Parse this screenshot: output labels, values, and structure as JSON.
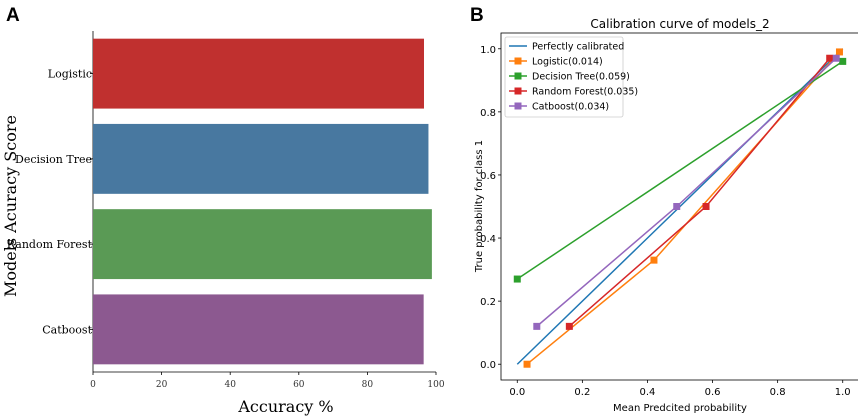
{
  "chart_data": [
    {
      "panel_label": "A",
      "type": "bar",
      "orientation": "horizontal",
      "title": "",
      "xlabel": "Accuracy %",
      "ylabel": "Models Acuracy Score",
      "xlim": [
        0,
        100
      ],
      "xticks": [
        0,
        20,
        40,
        60,
        80,
        100
      ],
      "categories": [
        "Logistic",
        "Decision Tree",
        "Random Forest",
        "Catboost"
      ],
      "values": [
        96.5,
        97.8,
        98.8,
        96.4
      ],
      "colors": [
        "#c0302f",
        "#4878a0",
        "#5a9a55",
        "#8c5990"
      ]
    },
    {
      "panel_label": "B",
      "type": "line",
      "title": "Calibration curve of models_2",
      "xlabel": "Mean Predcited probability",
      "ylabel": "True probability for class 1",
      "xlim": [
        -0.05,
        1.05
      ],
      "ylim": [
        -0.05,
        1.05
      ],
      "xticks": [
        0.0,
        0.2,
        0.4,
        0.6,
        0.8,
        1.0
      ],
      "yticks": [
        0.0,
        0.2,
        0.4,
        0.6,
        0.8,
        1.0
      ],
      "legend_position": "top-left",
      "series": [
        {
          "name": "Perfectly calibrated",
          "color": "#1f77b4",
          "marker": "none",
          "x": [
            0,
            1
          ],
          "y": [
            0,
            1
          ]
        },
        {
          "name": "Logistic(0.014)",
          "color": "#ff7f0e",
          "marker": "square",
          "x": [
            0.03,
            0.42,
            0.99
          ],
          "y": [
            0.0,
            0.33,
            0.99
          ]
        },
        {
          "name": "Decision Tree(0.059)",
          "color": "#2ca02c",
          "marker": "square",
          "x": [
            0.0,
            1.0
          ],
          "y": [
            0.27,
            0.96
          ]
        },
        {
          "name": "Random Forest(0.035)",
          "color": "#d62728",
          "marker": "square",
          "x": [
            0.16,
            0.58,
            0.96
          ],
          "y": [
            0.12,
            0.5,
            0.97
          ]
        },
        {
          "name": "Catboost(0.034)",
          "color": "#9467bd",
          "marker": "square",
          "x": [
            0.06,
            0.49,
            0.98
          ],
          "y": [
            0.12,
            0.5,
            0.97
          ]
        }
      ]
    }
  ]
}
